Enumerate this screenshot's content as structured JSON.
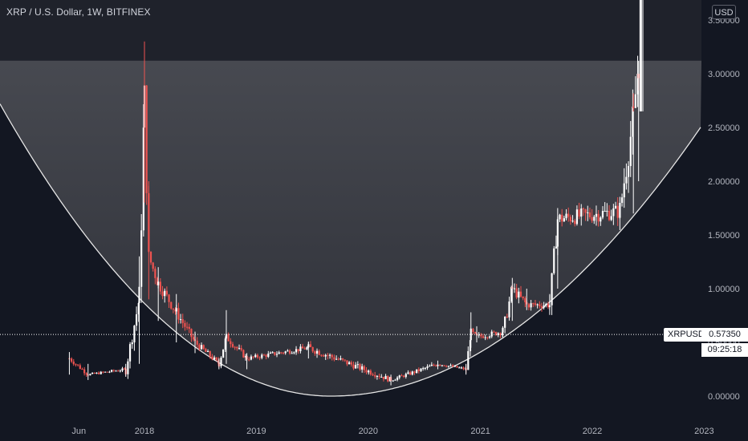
{
  "title": "XRP / U.S. Dollar, 1W, BITFINEX",
  "currency_button": "USD",
  "symbol_tag": "XRPUSD",
  "last_price_label": "0.57350",
  "countdown": "09:25:18",
  "chart_data": {
    "type": "candlestick",
    "title": "XRP / U.S. Dollar, 1W, BITFINEX",
    "xlabel": "",
    "ylabel": "",
    "ylim": [
      -0.25,
      3.7
    ],
    "y_ticks": [
      "0.00000",
      "0.50000",
      "1.00000",
      "1.50000",
      "2.00000",
      "2.50000",
      "3.00000",
      "3.50000"
    ],
    "x_ticks": [
      "Jun",
      "2018",
      "2019",
      "2020",
      "2021",
      "2022",
      "2023"
    ],
    "last_price": 0.5735,
    "grid": false,
    "colors": {
      "up": "#ffffff",
      "down": "#ef5350",
      "background": "#131722",
      "text": "#b2b5be",
      "fill_band": "#3b3d44"
    },
    "ohlc_anchors": [
      {
        "date": "2017-05-01",
        "close": 0.35,
        "high": 0.41,
        "low": 0.2
      },
      {
        "date": "2017-07-01",
        "close": 0.2,
        "high": 0.3,
        "low": 0.15
      },
      {
        "date": "2017-11-01",
        "close": 0.25,
        "high": 0.3,
        "low": 0.18
      },
      {
        "date": "2017-12-15",
        "close": 0.9,
        "high": 1.3,
        "low": 0.3
      },
      {
        "date": "2018-01-01",
        "close": 2.76,
        "high": 3.3,
        "low": 1.8
      },
      {
        "date": "2018-01-15",
        "close": 1.3,
        "high": 2.0,
        "low": 0.9
      },
      {
        "date": "2018-02-15",
        "close": 1.05,
        "high": 1.2,
        "low": 0.7
      },
      {
        "date": "2018-04-15",
        "close": 0.78,
        "high": 0.95,
        "low": 0.5
      },
      {
        "date": "2018-06-15",
        "close": 0.5,
        "high": 0.6,
        "low": 0.4
      },
      {
        "date": "2018-09-01",
        "close": 0.3,
        "high": 0.35,
        "low": 0.25
      },
      {
        "date": "2018-09-25",
        "close": 0.55,
        "high": 0.8,
        "low": 0.3
      },
      {
        "date": "2018-12-01",
        "close": 0.35,
        "high": 0.4,
        "low": 0.25
      },
      {
        "date": "2019-06-20",
        "close": 0.45,
        "high": 0.5,
        "low": 0.35
      },
      {
        "date": "2020-03-15",
        "close": 0.15,
        "high": 0.2,
        "low": 0.1
      },
      {
        "date": "2020-08-15",
        "close": 0.3,
        "high": 0.33,
        "low": 0.25
      },
      {
        "date": "2020-11-15",
        "close": 0.25,
        "high": 0.3,
        "low": 0.2
      },
      {
        "date": "2020-12-01",
        "close": 0.6,
        "high": 0.78,
        "low": 0.45
      },
      {
        "date": "2020-12-20",
        "close": 0.55,
        "high": 0.65,
        "low": 0.5
      },
      {
        "date": "2021-03-15",
        "close": 0.6,
        "high": 0.65,
        "low": 0.55
      },
      {
        "date": "2021-04-15",
        "close": 1.0,
        "high": 1.1,
        "low": 0.7
      },
      {
        "date": "2021-06-01",
        "close": 0.85,
        "high": 1.0,
        "low": 0.8
      },
      {
        "date": "2021-08-15",
        "close": 0.85,
        "high": 0.95,
        "low": 0.8
      },
      {
        "date": "2021-09-10",
        "close": 1.65,
        "high": 1.75,
        "low": 1.0
      },
      {
        "date": "2022-04-01",
        "close": 1.72,
        "high": 1.78,
        "low": 1.65
      },
      {
        "date": "2022-05-15",
        "close": 2.6,
        "high": 2.65,
        "low": 1.7
      },
      {
        "date": "2022-06-01",
        "close": 3.1,
        "high": 3.12,
        "low": 2.0
      },
      {
        "date": "2022-06-15",
        "close": 3.8,
        "high": 3.8,
        "low": 2.65
      }
    ],
    "shapes": [
      {
        "type": "horizontal-band",
        "y_from": 3.12,
        "y_to": "top"
      },
      {
        "type": "arc",
        "label": "",
        "bottom": 0.0,
        "bottom_date": "2019-09-01",
        "passes": [
          {
            "date": "2017-03-01",
            "price": 1.95
          },
          {
            "date": "2023-01-01",
            "price": 2.55
          }
        ]
      }
    ]
  }
}
